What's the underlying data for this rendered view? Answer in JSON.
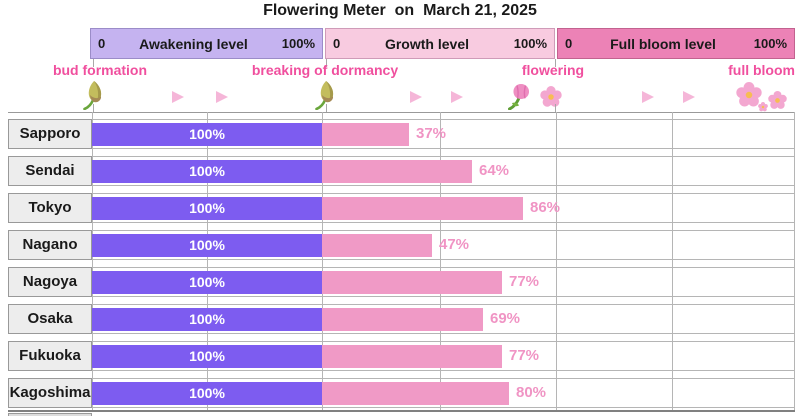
{
  "title": "Flowering Meter  on  March 21, 2025",
  "meter_header": {
    "sections": [
      {
        "min": "0",
        "label": "Awakening level",
        "max": "100%",
        "color": "#c5b3f0"
      },
      {
        "min": "0",
        "label": "Growth level",
        "max": "100%",
        "color": "#f8cbe0"
      },
      {
        "min": "0",
        "label": "Full bloom level",
        "max": "100%",
        "color": "#ec82b6"
      }
    ]
  },
  "stages": [
    {
      "label": "bud formation",
      "icon": "bud-icon"
    },
    {
      "label": "breaking of dormancy",
      "icon": "bud-icon"
    },
    {
      "label": "flowering",
      "icon": "tulip-and-blossom-icon"
    },
    {
      "label": "full bloom",
      "icon": "blossom-cluster-icon"
    }
  ],
  "rows": [
    {
      "city": "Sapporo",
      "awakening_label": "100%",
      "awakening_value": 100,
      "growth_label": "37%",
      "growth_value": 37,
      "full_bloom_value": 0
    },
    {
      "city": "Sendai",
      "awakening_label": "100%",
      "awakening_value": 100,
      "growth_label": "64%",
      "growth_value": 64,
      "full_bloom_value": 0
    },
    {
      "city": "Tokyo",
      "awakening_label": "100%",
      "awakening_value": 100,
      "growth_label": "86%",
      "growth_value": 86,
      "full_bloom_value": 0
    },
    {
      "city": "Nagano",
      "awakening_label": "100%",
      "awakening_value": 100,
      "growth_label": "47%",
      "growth_value": 47,
      "full_bloom_value": 0
    },
    {
      "city": "Nagoya",
      "awakening_label": "100%",
      "awakening_value": 100,
      "growth_label": "77%",
      "growth_value": 77,
      "full_bloom_value": 0
    },
    {
      "city": "Osaka",
      "awakening_label": "100%",
      "awakening_value": 100,
      "growth_label": "69%",
      "growth_value": 69,
      "full_bloom_value": 0
    },
    {
      "city": "Fukuoka",
      "awakening_label": "100%",
      "awakening_value": 100,
      "growth_label": "77%",
      "growth_value": 77,
      "full_bloom_value": 0
    },
    {
      "city": "Kagoshima",
      "awakening_label": "100%",
      "awakening_value": 100,
      "growth_label": "80%",
      "growth_value": 80,
      "full_bloom_value": 0
    }
  ],
  "chart_data": {
    "type": "bar",
    "orientation": "horizontal",
    "title": "Flowering Meter on March 21, 2025",
    "categories": [
      "Sapporo",
      "Sendai",
      "Tokyo",
      "Nagano",
      "Nagoya",
      "Osaka",
      "Fukuoka",
      "Kagoshima"
    ],
    "series": [
      {
        "name": "Awakening level",
        "unit": "%",
        "axis_range": [
          0,
          100
        ],
        "color": "#7d5cf0",
        "values": [
          100,
          100,
          100,
          100,
          100,
          100,
          100,
          100
        ]
      },
      {
        "name": "Growth level",
        "unit": "%",
        "axis_range": [
          0,
          100
        ],
        "color": "#f09ac6",
        "values": [
          37,
          64,
          86,
          47,
          77,
          69,
          77,
          80
        ]
      },
      {
        "name": "Full bloom level",
        "unit": "%",
        "axis_range": [
          0,
          100
        ],
        "color": "#ec82b6",
        "values": [
          0,
          0,
          0,
          0,
          0,
          0,
          0,
          0
        ]
      }
    ],
    "stage_markers": [
      "bud formation",
      "breaking of dormancy",
      "flowering",
      "full bloom"
    ],
    "grid": true,
    "value_labels": true,
    "legend_position": "top-bands"
  },
  "colors": {
    "awakening_band": "#c5b3f0",
    "growth_band": "#f8cbe0",
    "full_bloom_band": "#ec82b6",
    "awakening_bar": "#7d5cf0",
    "growth_bar": "#f09ac6",
    "percent_text": "#f094c4",
    "stage_label_text": "#f04f9e",
    "arrow_icon": "#f5b6d8",
    "city_cell_bg": "#ededed",
    "gridline": "#b5b5b5",
    "table_border": "#808080"
  }
}
